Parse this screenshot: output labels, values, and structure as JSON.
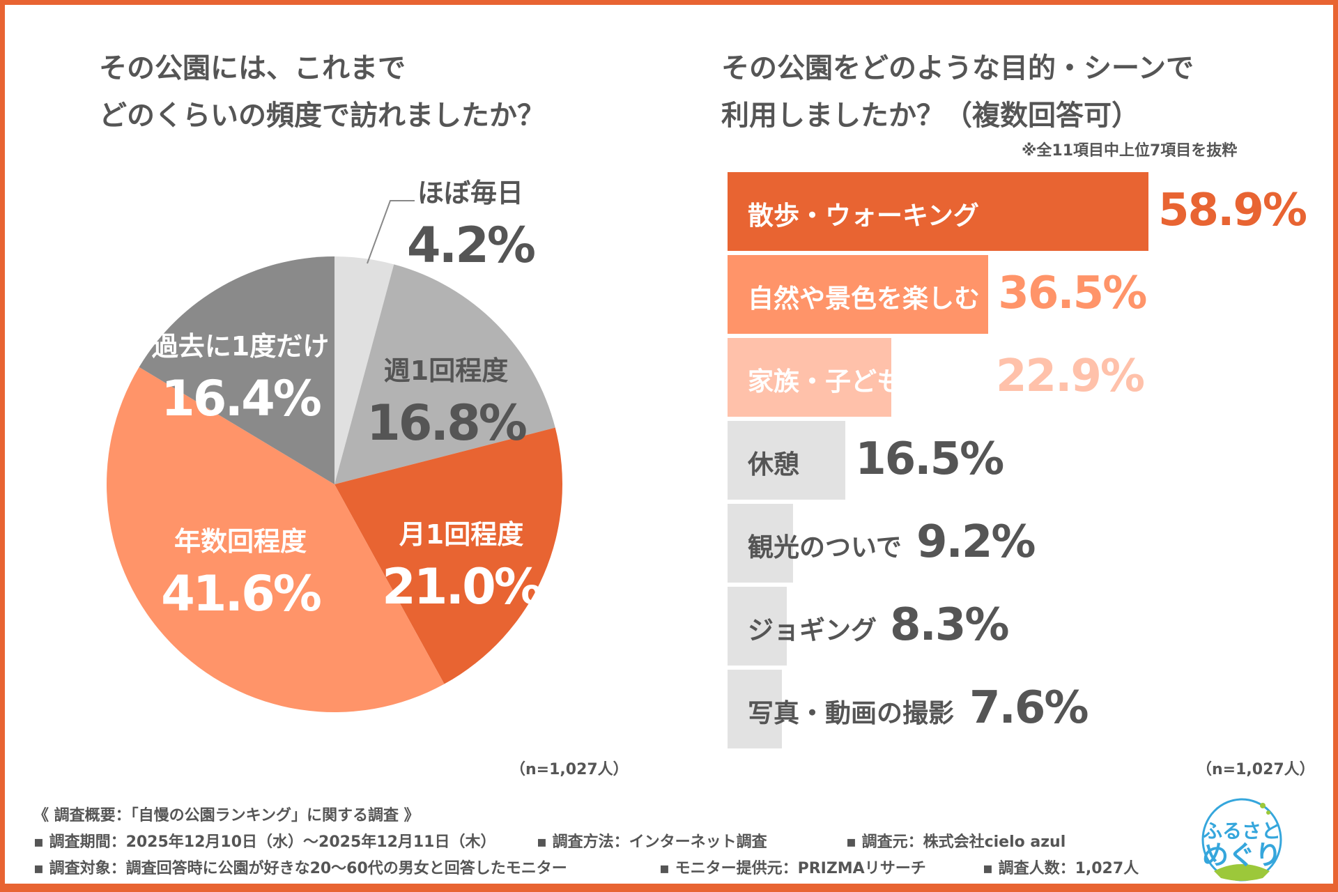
{
  "chart_data": [
    {
      "type": "pie",
      "title": "その公園には、これまで\nどのくらいの頻度で訪れましたか？",
      "title_lines": [
        "その公園には、これまで",
        "どのくらいの頻度で訪れましたか？"
      ],
      "slices": [
        {
          "label": "ほぼ毎日",
          "value": 4.2,
          "text": "4.2%",
          "color": "#e0e0e0"
        },
        {
          "label": "週1回程度",
          "value": 16.8,
          "text": "16.8%",
          "color": "#b3b3b3"
        },
        {
          "label": "月1回程度",
          "value": 21.0,
          "text": "21.0%",
          "color": "#e86432"
        },
        {
          "label": "年数回程度",
          "value": 41.6,
          "text": "41.6%",
          "color": "#ff9469"
        },
        {
          "label": "過去に1度だけ",
          "value": 16.4,
          "text": "16.4%",
          "color": "#8a8a8a"
        }
      ],
      "sample": "（n=1,027人）"
    },
    {
      "type": "bar",
      "orientation": "horizontal",
      "title_lines": [
        "その公園をどのような目的・シーンで",
        "利用しましたか？（複数回答可）"
      ],
      "note": "※全11項目中上位7項目を抜粋",
      "categories": [
        "散歩・ウォーキング",
        "自然や景色を楽しむ",
        "家族・子どもと遊ぶ",
        "休憩",
        "観光のついで",
        "ジョギング",
        "写真・動画の撮影"
      ],
      "values": [
        58.9,
        36.5,
        22.9,
        16.5,
        9.2,
        8.3,
        7.6
      ],
      "value_labels": [
        "58.9%",
        "36.5%",
        "22.9%",
        "16.5%",
        "9.2%",
        "8.3%",
        "7.6%"
      ],
      "bar_colors": [
        "#e86432",
        "#ff9469",
        "#ffc1aa",
        "#e2e2e2",
        "#e2e2e2",
        "#e2e2e2",
        "#e2e2e2"
      ],
      "value_colors": [
        "#e86432",
        "#ff9469",
        "#ffc1aa",
        "#555555",
        "#555555",
        "#555555",
        "#555555"
      ],
      "label_colors": [
        "#ffffff",
        "#ffffff",
        "#ffffff",
        "#555555",
        "#555555",
        "#555555",
        "#555555"
      ],
      "sample": "（n=1,027人）"
    }
  ],
  "footer": {
    "heading": "《 調査概要：「自慢の公園ランキング」に関する調査 》",
    "period": "▪ 調査期間：2025年12月10日（水）～2025年12月11日（木）",
    "method": "▪ 調査方法：インターネット調査",
    "source": "▪ 調査元：株式会社cielo azul",
    "target": "▪ 調査対象：調査回答時に公園が好きな20〜60代の男女と回答したモニター",
    "provider": "▪ モニター提供元：PRIZMAリサーチ",
    "count": "▪ 調査人数：1,027人"
  },
  "logo": {
    "text1": "ふるさと",
    "text2": "めぐり"
  },
  "colors": {
    "accent": "#e86432",
    "frame": "#e86432"
  }
}
